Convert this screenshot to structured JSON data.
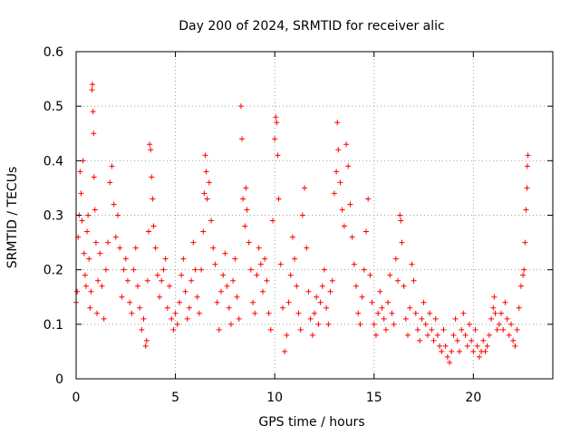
{
  "chart_data": {
    "type": "scatter",
    "title": "Day 200 of 2024, SRMTID for receiver alic",
    "xlabel": "GPS time / hours",
    "ylabel": "SRMTID / TECUs",
    "xlim": [
      0,
      24
    ],
    "ylim": [
      0,
      0.6
    ],
    "xticks": [
      0,
      5,
      10,
      15,
      20
    ],
    "yticks": [
      0,
      0.1,
      0.2,
      0.3,
      0.4,
      0.5,
      0.6
    ],
    "xtick_labels": [
      "0",
      "5",
      "10",
      "15",
      "20"
    ],
    "ytick_labels": [
      "0",
      "0.1",
      "0.2",
      "0.3",
      "0.4",
      "0.5",
      "0.6"
    ],
    "grid": true,
    "marker": "+",
    "color": "#ff0000",
    "series": [
      {
        "name": "SRMTID",
        "points": [
          [
            0.0,
            0.14
          ],
          [
            0.05,
            0.16
          ],
          [
            0.1,
            0.26
          ],
          [
            0.15,
            0.3
          ],
          [
            0.2,
            0.38
          ],
          [
            0.25,
            0.34
          ],
          [
            0.3,
            0.29
          ],
          [
            0.35,
            0.4
          ],
          [
            0.4,
            0.23
          ],
          [
            0.45,
            0.19
          ],
          [
            0.5,
            0.17
          ],
          [
            0.55,
            0.27
          ],
          [
            0.6,
            0.3
          ],
          [
            0.65,
            0.22
          ],
          [
            0.7,
            0.13
          ],
          [
            0.75,
            0.16
          ],
          [
            0.8,
            0.53
          ],
          [
            0.82,
            0.54
          ],
          [
            0.85,
            0.49
          ],
          [
            0.88,
            0.45
          ],
          [
            0.9,
            0.37
          ],
          [
            0.95,
            0.31
          ],
          [
            1.0,
            0.25
          ],
          [
            1.05,
            0.12
          ],
          [
            1.1,
            0.18
          ],
          [
            1.2,
            0.23
          ],
          [
            1.3,
            0.17
          ],
          [
            1.4,
            0.11
          ],
          [
            1.5,
            0.2
          ],
          [
            1.6,
            0.25
          ],
          [
            1.7,
            0.36
          ],
          [
            1.8,
            0.39
          ],
          [
            1.9,
            0.32
          ],
          [
            2.0,
            0.26
          ],
          [
            2.1,
            0.3
          ],
          [
            2.2,
            0.24
          ],
          [
            2.3,
            0.15
          ],
          [
            2.4,
            0.2
          ],
          [
            2.5,
            0.22
          ],
          [
            2.6,
            0.18
          ],
          [
            2.7,
            0.14
          ],
          [
            2.8,
            0.12
          ],
          [
            2.9,
            0.2
          ],
          [
            3.0,
            0.24
          ],
          [
            3.1,
            0.17
          ],
          [
            3.2,
            0.13
          ],
          [
            3.3,
            0.09
          ],
          [
            3.4,
            0.11
          ],
          [
            3.5,
            0.06
          ],
          [
            3.55,
            0.07
          ],
          [
            3.6,
            0.18
          ],
          [
            3.65,
            0.27
          ],
          [
            3.7,
            0.43
          ],
          [
            3.75,
            0.42
          ],
          [
            3.8,
            0.37
          ],
          [
            3.85,
            0.33
          ],
          [
            3.9,
            0.28
          ],
          [
            4.0,
            0.24
          ],
          [
            4.1,
            0.19
          ],
          [
            4.2,
            0.15
          ],
          [
            4.3,
            0.18
          ],
          [
            4.4,
            0.2
          ],
          [
            4.5,
            0.22
          ],
          [
            4.6,
            0.13
          ],
          [
            4.7,
            0.17
          ],
          [
            4.8,
            0.11
          ],
          [
            4.9,
            0.09
          ],
          [
            5.0,
            0.12
          ],
          [
            5.1,
            0.1
          ],
          [
            5.2,
            0.14
          ],
          [
            5.3,
            0.19
          ],
          [
            5.4,
            0.22
          ],
          [
            5.5,
            0.16
          ],
          [
            5.6,
            0.11
          ],
          [
            5.7,
            0.13
          ],
          [
            5.8,
            0.18
          ],
          [
            5.9,
            0.25
          ],
          [
            6.0,
            0.2
          ],
          [
            6.1,
            0.15
          ],
          [
            6.2,
            0.12
          ],
          [
            6.3,
            0.2
          ],
          [
            6.4,
            0.27
          ],
          [
            6.45,
            0.34
          ],
          [
            6.5,
            0.41
          ],
          [
            6.55,
            0.38
          ],
          [
            6.6,
            0.33
          ],
          [
            6.7,
            0.36
          ],
          [
            6.8,
            0.29
          ],
          [
            6.9,
            0.24
          ],
          [
            7.0,
            0.21
          ],
          [
            7.1,
            0.14
          ],
          [
            7.2,
            0.09
          ],
          [
            7.3,
            0.16
          ],
          [
            7.4,
            0.19
          ],
          [
            7.5,
            0.23
          ],
          [
            7.6,
            0.17
          ],
          [
            7.7,
            0.13
          ],
          [
            7.8,
            0.1
          ],
          [
            7.9,
            0.18
          ],
          [
            8.0,
            0.22
          ],
          [
            8.1,
            0.15
          ],
          [
            8.2,
            0.11
          ],
          [
            8.3,
            0.5
          ],
          [
            8.35,
            0.44
          ],
          [
            8.4,
            0.33
          ],
          [
            8.5,
            0.28
          ],
          [
            8.55,
            0.35
          ],
          [
            8.6,
            0.31
          ],
          [
            8.7,
            0.25
          ],
          [
            8.8,
            0.2
          ],
          [
            8.9,
            0.14
          ],
          [
            9.0,
            0.12
          ],
          [
            9.1,
            0.19
          ],
          [
            9.2,
            0.24
          ],
          [
            9.3,
            0.21
          ],
          [
            9.4,
            0.16
          ],
          [
            9.5,
            0.22
          ],
          [
            9.6,
            0.18
          ],
          [
            9.7,
            0.12
          ],
          [
            9.8,
            0.09
          ],
          [
            9.9,
            0.29
          ],
          [
            10.0,
            0.44
          ],
          [
            10.05,
            0.48
          ],
          [
            10.1,
            0.47
          ],
          [
            10.15,
            0.41
          ],
          [
            10.2,
            0.33
          ],
          [
            10.3,
            0.21
          ],
          [
            10.4,
            0.13
          ],
          [
            10.5,
            0.05
          ],
          [
            10.6,
            0.08
          ],
          [
            10.7,
            0.14
          ],
          [
            10.8,
            0.19
          ],
          [
            10.9,
            0.26
          ],
          [
            11.0,
            0.22
          ],
          [
            11.1,
            0.17
          ],
          [
            11.2,
            0.12
          ],
          [
            11.3,
            0.09
          ],
          [
            11.4,
            0.3
          ],
          [
            11.5,
            0.35
          ],
          [
            11.6,
            0.24
          ],
          [
            11.7,
            0.16
          ],
          [
            11.8,
            0.11
          ],
          [
            11.9,
            0.08
          ],
          [
            12.0,
            0.12
          ],
          [
            12.1,
            0.15
          ],
          [
            12.2,
            0.1
          ],
          [
            12.3,
            0.14
          ],
          [
            12.4,
            0.17
          ],
          [
            12.5,
            0.2
          ],
          [
            12.6,
            0.13
          ],
          [
            12.7,
            0.1
          ],
          [
            12.8,
            0.16
          ],
          [
            12.9,
            0.18
          ],
          [
            13.0,
            0.34
          ],
          [
            13.1,
            0.38
          ],
          [
            13.15,
            0.47
          ],
          [
            13.2,
            0.42
          ],
          [
            13.3,
            0.36
          ],
          [
            13.4,
            0.31
          ],
          [
            13.5,
            0.28
          ],
          [
            13.6,
            0.43
          ],
          [
            13.7,
            0.39
          ],
          [
            13.8,
            0.32
          ],
          [
            13.9,
            0.26
          ],
          [
            14.0,
            0.21
          ],
          [
            14.1,
            0.17
          ],
          [
            14.2,
            0.12
          ],
          [
            14.3,
            0.1
          ],
          [
            14.4,
            0.15
          ],
          [
            14.5,
            0.2
          ],
          [
            14.6,
            0.27
          ],
          [
            14.7,
            0.33
          ],
          [
            14.8,
            0.19
          ],
          [
            14.9,
            0.14
          ],
          [
            15.0,
            0.1
          ],
          [
            15.1,
            0.08
          ],
          [
            15.2,
            0.12
          ],
          [
            15.3,
            0.16
          ],
          [
            15.4,
            0.13
          ],
          [
            15.5,
            0.11
          ],
          [
            15.6,
            0.09
          ],
          [
            15.7,
            0.14
          ],
          [
            15.8,
            0.19
          ],
          [
            15.9,
            0.12
          ],
          [
            16.0,
            0.1
          ],
          [
            16.1,
            0.22
          ],
          [
            16.2,
            0.18
          ],
          [
            16.3,
            0.3
          ],
          [
            16.35,
            0.29
          ],
          [
            16.4,
            0.25
          ],
          [
            16.5,
            0.17
          ],
          [
            16.6,
            0.11
          ],
          [
            16.7,
            0.08
          ],
          [
            16.8,
            0.13
          ],
          [
            16.9,
            0.21
          ],
          [
            17.0,
            0.18
          ],
          [
            17.1,
            0.12
          ],
          [
            17.2,
            0.09
          ],
          [
            17.3,
            0.07
          ],
          [
            17.4,
            0.11
          ],
          [
            17.5,
            0.14
          ],
          [
            17.6,
            0.1
          ],
          [
            17.7,
            0.08
          ],
          [
            17.8,
            0.12
          ],
          [
            17.9,
            0.09
          ],
          [
            18.0,
            0.07
          ],
          [
            18.1,
            0.11
          ],
          [
            18.2,
            0.08
          ],
          [
            18.3,
            0.06
          ],
          [
            18.4,
            0.05
          ],
          [
            18.5,
            0.09
          ],
          [
            18.6,
            0.06
          ],
          [
            18.7,
            0.04
          ],
          [
            18.8,
            0.03
          ],
          [
            18.9,
            0.05
          ],
          [
            19.0,
            0.08
          ],
          [
            19.1,
            0.11
          ],
          [
            19.2,
            0.07
          ],
          [
            19.3,
            0.05
          ],
          [
            19.4,
            0.09
          ],
          [
            19.5,
            0.12
          ],
          [
            19.6,
            0.08
          ],
          [
            19.7,
            0.06
          ],
          [
            19.8,
            0.1
          ],
          [
            19.9,
            0.07
          ],
          [
            20.0,
            0.05
          ],
          [
            20.1,
            0.09
          ],
          [
            20.2,
            0.06
          ],
          [
            20.3,
            0.04
          ],
          [
            20.4,
            0.05
          ],
          [
            20.5,
            0.07
          ],
          [
            20.6,
            0.05
          ],
          [
            20.7,
            0.06
          ],
          [
            20.8,
            0.08
          ],
          [
            20.9,
            0.11
          ],
          [
            21.0,
            0.13
          ],
          [
            21.05,
            0.15
          ],
          [
            21.1,
            0.12
          ],
          [
            21.2,
            0.09
          ],
          [
            21.3,
            0.1
          ],
          [
            21.4,
            0.12
          ],
          [
            21.5,
            0.09
          ],
          [
            21.6,
            0.14
          ],
          [
            21.7,
            0.11
          ],
          [
            21.8,
            0.08
          ],
          [
            21.9,
            0.1
          ],
          [
            22.0,
            0.07
          ],
          [
            22.1,
            0.06
          ],
          [
            22.2,
            0.09
          ],
          [
            22.3,
            0.13
          ],
          [
            22.4,
            0.17
          ],
          [
            22.5,
            0.19
          ],
          [
            22.55,
            0.2
          ],
          [
            22.6,
            0.25
          ],
          [
            22.65,
            0.31
          ],
          [
            22.7,
            0.35
          ],
          [
            22.72,
            0.39
          ],
          [
            22.75,
            0.41
          ]
        ]
      }
    ]
  }
}
